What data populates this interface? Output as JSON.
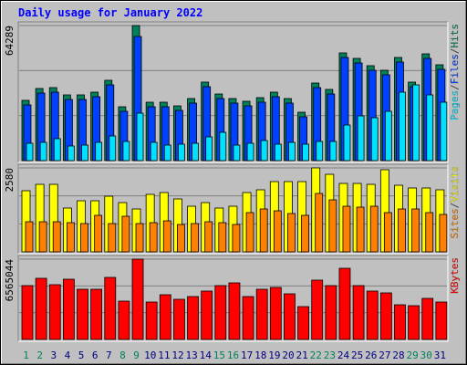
{
  "legend_separator": "/",
  "chart_data": [
    {
      "type": "bar",
      "title": "Daily usage for January 2022",
      "ylim": [
        0,
        64289
      ],
      "yticks": [
        64289
      ],
      "series": [
        {
          "name": "Hits",
          "color": "#00805c",
          "values": [
            28670,
            34320,
            34750,
            31280,
            31280,
            32580,
            38230,
            25630,
            64289,
            27800,
            27800,
            26060,
            29540,
            37360,
            31710,
            29540,
            28240,
            29970,
            32580,
            29540,
            23020,
            36920,
            33880,
            51260,
            48650,
            45180,
            43010,
            49090,
            37360,
            50830,
            45610
          ]
        },
        {
          "name": "Files",
          "color": "#0040ff",
          "values": [
            26500,
            32150,
            32580,
            29100,
            29100,
            30400,
            36060,
            23460,
            59080,
            25630,
            25630,
            23890,
            27370,
            35190,
            29540,
            27370,
            26060,
            27800,
            30400,
            27370,
            20850,
            34750,
            31710,
            49090,
            46480,
            43010,
            40840,
            46920,
            35190,
            48650,
            43440
          ]
        },
        {
          "name": "Pages",
          "color": "#00e0ff",
          "values": [
            8250,
            8690,
            10430,
            6950,
            7380,
            8690,
            11730,
            9120,
            22590,
            8690,
            7380,
            7820,
            8250,
            11290,
            13470,
            7380,
            8250,
            9560,
            7820,
            8690,
            7820,
            9120,
            9120,
            16940,
            21290,
            20420,
            23460,
            32580,
            36060,
            31280,
            27800
          ]
        }
      ]
    },
    {
      "type": "bar",
      "ylim": [
        0,
        2580
      ],
      "yticks": [
        2580
      ],
      "series": [
        {
          "name": "Visits",
          "color": "#ffff00",
          "values": [
            1879,
            2075,
            2075,
            1346,
            1570,
            1570,
            1710,
            1514,
            1318,
            1767,
            1823,
            1626,
            1402,
            1514,
            1346,
            1402,
            1823,
            1907,
            2159,
            2159,
            2159,
            2580,
            2383,
            2103,
            2103,
            2075,
            2524,
            2047,
            1963,
            1963,
            1907
          ]
        },
        {
          "name": "Sites",
          "color": "#ff8000",
          "values": [
            925,
            925,
            925,
            897,
            869,
            1122,
            869,
            1094,
            869,
            897,
            953,
            841,
            869,
            925,
            897,
            841,
            1206,
            1318,
            1262,
            1178,
            1122,
            1795,
            1598,
            1402,
            1374,
            1402,
            1206,
            1318,
            1318,
            1206,
            1150
          ]
        }
      ]
    },
    {
      "type": "bar",
      "ylim": [
        0,
        6565044
      ],
      "yticks": [
        6565044
      ],
      "categories": [
        "1",
        "2",
        "3",
        "4",
        "5",
        "6",
        "7",
        "8",
        "9",
        "10",
        "11",
        "12",
        "13",
        "14",
        "15",
        "16",
        "17",
        "18",
        "19",
        "20",
        "21",
        "22",
        "23",
        "24",
        "25",
        "26",
        "27",
        "28",
        "29",
        "30",
        "31"
      ],
      "category_colors": [
        "#00805c",
        "#00805c",
        "#000080",
        "#000080",
        "#000080",
        "#000080",
        "#000080",
        "#00805c",
        "#00805c",
        "#000080",
        "#000080",
        "#000080",
        "#000080",
        "#000080",
        "#00805c",
        "#00805c",
        "#000080",
        "#000080",
        "#000080",
        "#000080",
        "#000080",
        "#00805c",
        "#00805c",
        "#000080",
        "#000080",
        "#000080",
        "#000080",
        "#000080",
        "#00805c",
        "#00805c",
        "#000080"
      ],
      "series": [
        {
          "name": "KBytes",
          "color": "#ff0000",
          "values": [
            4401600,
            4998400,
            4476200,
            4923800,
            4103200,
            4103200,
            5073000,
            3133300,
            6565044,
            3058700,
            3655500,
            3282500,
            3506300,
            3954000,
            4401600,
            4625400,
            3506300,
            4103200,
            4252400,
            3730200,
            2685700,
            4849200,
            4401600,
            5819000,
            4401600,
            3954000,
            3804800,
            2834900,
            2760300,
            3357100,
            3058700
          ]
        }
      ]
    }
  ]
}
